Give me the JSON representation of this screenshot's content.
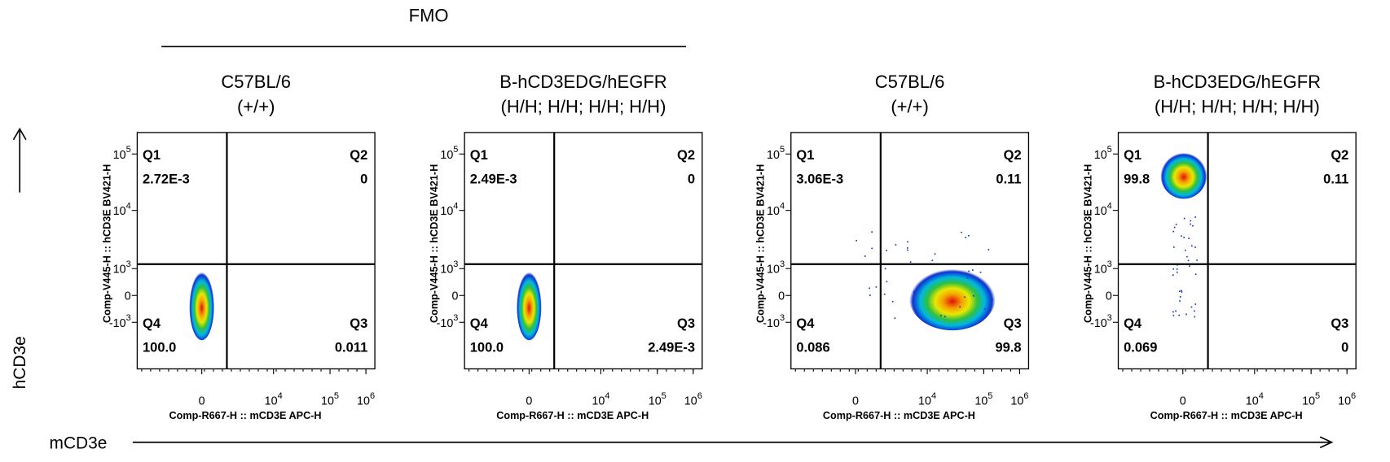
{
  "header": {
    "group_label": "FMO"
  },
  "axes": {
    "y_label": "hCD3e",
    "x_label": "mCD3e"
  },
  "ticks": {
    "x": [
      {
        "base": "0"
      },
      {
        "base": "10",
        "exponent": "4"
      },
      {
        "base": "10",
        "exponent": "5"
      },
      {
        "base": "10",
        "exponent": "6"
      }
    ],
    "y": [
      {
        "base": "10",
        "exponent": "5"
      },
      {
        "base": "10",
        "exponent": "4"
      },
      {
        "base": "10",
        "exponent": "3"
      },
      {
        "base": "0"
      },
      {
        "base": "-10",
        "exponent": "3"
      }
    ]
  },
  "panels": [
    {
      "title": [
        "C57BL/6",
        "(+/+)"
      ],
      "x_axis_label": "Comp-R667-H :: mCD3E APC-H",
      "y_axis_label": "Comp-V445-H :: hCD3E BV421-H",
      "quadrants": [
        {
          "name": "Q1",
          "value": "2.72E-3"
        },
        {
          "name": "Q2",
          "value": "0"
        },
        {
          "name": "Q3",
          "value": "0.011"
        },
        {
          "name": "Q4",
          "value": "100.0"
        }
      ]
    },
    {
      "title": [
        "B-hCD3EDG/hEGFR",
        "(H/H; H/H; H/H; H/H)"
      ],
      "x_axis_label": "Comp-R667-H :: mCD3E APC-H",
      "y_axis_label": "Comp-V445-H :: hCD3E BV421-H",
      "quadrants": [
        {
          "name": "Q1",
          "value": "2.49E-3"
        },
        {
          "name": "Q2",
          "value": "0"
        },
        {
          "name": "Q3",
          "value": "2.49E-3"
        },
        {
          "name": "Q4",
          "value": "100.0"
        }
      ]
    },
    {
      "title": [
        "C57BL/6",
        "(+/+)"
      ],
      "x_axis_label": "Comp-R667-H :: mCD3E APC-H",
      "y_axis_label": "Comp-V445-H :: hCD3E BV421-H",
      "quadrants": [
        {
          "name": "Q1",
          "value": "3.06E-3"
        },
        {
          "name": "Q2",
          "value": "0.11"
        },
        {
          "name": "Q3",
          "value": "99.8"
        },
        {
          "name": "Q4",
          "value": "0.086"
        }
      ]
    },
    {
      "title": [
        "B-hCD3EDG/hEGFR",
        "(H/H; H/H; H/H; H/H)"
      ],
      "x_axis_label": "Comp-R667-H :: mCD3E APC-H",
      "y_axis_label": "Comp-V445-H :: hCD3E BV421-H",
      "quadrants": [
        {
          "name": "Q1",
          "value": "99.8"
        },
        {
          "name": "Q2",
          "value": "0.11"
        },
        {
          "name": "Q3",
          "value": "0"
        },
        {
          "name": "Q4",
          "value": "0.069"
        }
      ]
    }
  ]
}
